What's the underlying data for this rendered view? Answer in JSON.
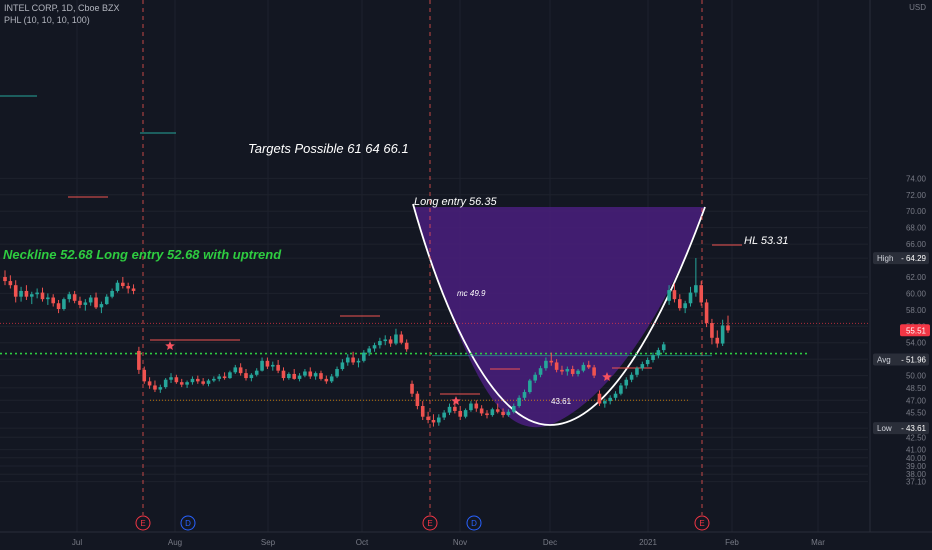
{
  "header": {
    "symbol_line": "INTEL CORP, 1D, Cboe BZX",
    "indicator_line": "PHL (10, 10, 10, 100)"
  },
  "chart_data": {
    "type": "candlestick",
    "currency": "USD",
    "y_ticks": [
      37.1,
      38.0,
      39.0,
      40.0,
      41.0,
      42.5,
      43.61,
      45.5,
      47.0,
      48.5,
      50.0,
      52.0,
      54.0,
      56.0,
      58.0,
      60.0,
      62.0,
      64.29,
      66.0,
      68.0,
      70.0,
      72.0,
      74.0
    ],
    "y_tick_labels": [
      "37.10",
      "38.00",
      "39.00",
      "40.00",
      "41.00",
      "42.50",
      "43.61",
      "45.50",
      "47.00",
      "48.50",
      "50.00",
      "52.00",
      "54.00",
      "56.00",
      "58.00",
      "60.00",
      "62.00",
      "64.29",
      "66.00",
      "68.00",
      "70.00",
      "72.00",
      "74.00"
    ],
    "x_labels": [
      "Jul",
      "Aug",
      "Sep",
      "Oct",
      "Nov",
      "Dec",
      "2021",
      "Feb",
      "Mar"
    ],
    "price_tags": [
      {
        "label": "High",
        "value": "64.29",
        "color": "#2a2e39"
      },
      {
        "label": "",
        "value": "55.51",
        "color": "#f23645"
      },
      {
        "label": "Avg",
        "value": "51.96",
        "color": "#2a2e39"
      },
      {
        "label": "Low",
        "value": "43.61",
        "color": "#2a2e39"
      }
    ],
    "events": [
      {
        "label": "E",
        "color": "#f23645"
      },
      {
        "label": "D",
        "color": "#2962ff"
      },
      {
        "label": "E",
        "color": "#f23645"
      },
      {
        "label": "D",
        "color": "#2962ff"
      },
      {
        "label": "E",
        "color": "#f23645"
      }
    ],
    "annotations": {
      "targets": "Targets Possible 61    64    66.1",
      "neckline": "Neckline 52.68   Long entry 52.68 with uptrend",
      "long_entry": "Long entry 56.35",
      "hl": "HL 53.31",
      "mc": "mc  49.9",
      "low_label": "43.61"
    },
    "colors": {
      "up": "#26a69a",
      "down": "#ef5350",
      "background": "#131722",
      "neckline": "#2ecc40",
      "cup_fill": "#4a1e7e"
    },
    "candles": [
      [
        62.0,
        62.8,
        61.0,
        61.5
      ],
      [
        61.5,
        62.2,
        60.6,
        61.0
      ],
      [
        61.0,
        61.6,
        58.9,
        59.6
      ],
      [
        59.6,
        60.8,
        59.0,
        60.3
      ],
      [
        60.3,
        61.0,
        59.2,
        59.6
      ],
      [
        59.6,
        60.2,
        58.7,
        59.9
      ],
      [
        59.9,
        60.6,
        59.4,
        60.1
      ],
      [
        60.1,
        60.7,
        59.0,
        59.3
      ],
      [
        59.3,
        60.0,
        58.6,
        59.5
      ],
      [
        59.5,
        59.9,
        58.4,
        58.8
      ],
      [
        58.8,
        59.2,
        57.6,
        58.1
      ],
      [
        58.1,
        59.5,
        57.9,
        59.3
      ],
      [
        59.3,
        60.2,
        58.9,
        59.9
      ],
      [
        59.9,
        60.3,
        58.8,
        59.1
      ],
      [
        59.1,
        59.6,
        58.2,
        58.6
      ],
      [
        58.6,
        59.3,
        57.9,
        58.9
      ],
      [
        58.9,
        59.8,
        58.5,
        59.5
      ],
      [
        59.5,
        60.1,
        58.1,
        58.3
      ],
      [
        58.3,
        59.0,
        57.6,
        58.7
      ],
      [
        58.7,
        59.9,
        58.6,
        59.6
      ],
      [
        59.6,
        60.6,
        59.4,
        60.3
      ],
      [
        60.3,
        61.6,
        60.1,
        61.3
      ],
      [
        61.3,
        62.0,
        60.6,
        60.9
      ],
      [
        60.9,
        61.3,
        60.0,
        60.6
      ],
      [
        60.6,
        61.1,
        59.9,
        60.3
      ],
      [
        53.0,
        53.5,
        50.2,
        50.7
      ],
      [
        50.7,
        51.1,
        49.0,
        49.3
      ],
      [
        49.3,
        49.8,
        48.4,
        48.8
      ],
      [
        48.8,
        49.4,
        48.0,
        48.3
      ],
      [
        48.3,
        48.9,
        47.9,
        48.6
      ],
      [
        48.6,
        49.7,
        48.4,
        49.5
      ],
      [
        49.5,
        50.3,
        49.1,
        49.8
      ],
      [
        49.8,
        50.1,
        49.0,
        49.2
      ],
      [
        49.2,
        49.6,
        48.6,
        48.9
      ],
      [
        48.9,
        49.4,
        48.5,
        49.2
      ],
      [
        49.2,
        49.9,
        48.9,
        49.6
      ],
      [
        49.6,
        50.0,
        49.0,
        49.3
      ],
      [
        49.3,
        49.7,
        48.8,
        49.0
      ],
      [
        49.0,
        49.6,
        48.7,
        49.4
      ],
      [
        49.4,
        49.9,
        49.2,
        49.6
      ],
      [
        49.6,
        50.2,
        49.3,
        49.9
      ],
      [
        49.9,
        50.4,
        49.5,
        49.7
      ],
      [
        49.7,
        50.6,
        49.6,
        50.4
      ],
      [
        50.4,
        51.3,
        50.2,
        51.0
      ],
      [
        51.0,
        51.5,
        50.0,
        50.3
      ],
      [
        50.3,
        50.8,
        49.4,
        49.7
      ],
      [
        49.7,
        50.3,
        49.3,
        50.1
      ],
      [
        50.1,
        50.9,
        49.9,
        50.6
      ],
      [
        50.6,
        52.2,
        50.5,
        51.8
      ],
      [
        51.8,
        52.2,
        50.8,
        51.1
      ],
      [
        51.1,
        51.7,
        50.6,
        51.3
      ],
      [
        51.3,
        51.9,
        50.3,
        50.6
      ],
      [
        50.6,
        51.0,
        49.4,
        49.7
      ],
      [
        49.7,
        50.4,
        49.5,
        50.2
      ],
      [
        50.2,
        50.8,
        49.5,
        49.6
      ],
      [
        49.6,
        50.3,
        49.3,
        50.0
      ],
      [
        50.0,
        50.8,
        49.8,
        50.5
      ],
      [
        50.5,
        51.0,
        49.6,
        49.9
      ],
      [
        49.9,
        50.5,
        49.5,
        50.3
      ],
      [
        50.3,
        50.6,
        49.4,
        49.6
      ],
      [
        49.6,
        50.0,
        49.0,
        49.3
      ],
      [
        49.3,
        50.2,
        49.1,
        49.9
      ],
      [
        49.9,
        51.1,
        49.7,
        50.8
      ],
      [
        50.8,
        52.0,
        50.6,
        51.6
      ],
      [
        51.6,
        52.6,
        51.2,
        52.2
      ],
      [
        52.2,
        52.9,
        51.3,
        51.6
      ],
      [
        51.6,
        52.1,
        51.0,
        51.8
      ],
      [
        51.8,
        53.1,
        51.6,
        52.8
      ],
      [
        52.8,
        53.6,
        52.4,
        53.3
      ],
      [
        53.3,
        54.0,
        52.9,
        53.7
      ],
      [
        53.7,
        54.6,
        53.3,
        54.2
      ],
      [
        54.2,
        54.9,
        53.7,
        54.4
      ],
      [
        54.4,
        54.8,
        53.5,
        53.9
      ],
      [
        53.9,
        55.7,
        53.7,
        55.0
      ],
      [
        55.0,
        55.4,
        53.8,
        54.0
      ],
      [
        54.0,
        54.4,
        52.9,
        53.2
      ],
      [
        49.0,
        49.4,
        47.4,
        47.8
      ],
      [
        47.8,
        48.1,
        45.9,
        46.3
      ],
      [
        46.3,
        46.9,
        44.6,
        45.0
      ],
      [
        45.0,
        45.6,
        44.2,
        44.6
      ],
      [
        44.6,
        45.3,
        43.8,
        44.3
      ],
      [
        44.3,
        45.3,
        43.9,
        44.9
      ],
      [
        44.9,
        45.8,
        44.6,
        45.5
      ],
      [
        45.5,
        46.6,
        45.2,
        46.2
      ],
      [
        46.2,
        46.7,
        45.4,
        45.7
      ],
      [
        45.7,
        46.3,
        44.6,
        45.0
      ],
      [
        45.0,
        46.0,
        44.8,
        45.8
      ],
      [
        45.8,
        46.9,
        45.6,
        46.6
      ],
      [
        46.6,
        47.0,
        45.6,
        46.0
      ],
      [
        46.0,
        46.4,
        45.1,
        45.4
      ],
      [
        45.4,
        45.8,
        44.8,
        45.2
      ],
      [
        45.2,
        46.1,
        45.0,
        45.9
      ],
      [
        45.9,
        46.6,
        45.4,
        45.6
      ],
      [
        45.6,
        46.0,
        44.9,
        45.2
      ],
      [
        45.2,
        45.9,
        45.0,
        45.6
      ],
      [
        45.6,
        46.6,
        45.4,
        46.3
      ],
      [
        46.3,
        47.6,
        46.1,
        47.3
      ],
      [
        47.3,
        48.3,
        47.0,
        48.0
      ],
      [
        48.0,
        49.6,
        47.8,
        49.4
      ],
      [
        49.4,
        50.4,
        49.1,
        50.1
      ],
      [
        50.1,
        51.2,
        49.8,
        50.9
      ],
      [
        50.9,
        52.2,
        50.6,
        51.8
      ],
      [
        51.8,
        52.8,
        51.2,
        51.6
      ],
      [
        51.6,
        52.0,
        50.4,
        50.7
      ],
      [
        50.7,
        51.2,
        50.1,
        50.5
      ],
      [
        50.5,
        51.1,
        50.0,
        50.8
      ],
      [
        50.8,
        51.2,
        49.9,
        50.2
      ],
      [
        50.2,
        50.8,
        49.9,
        50.6
      ],
      [
        50.6,
        51.6,
        50.4,
        51.3
      ],
      [
        51.3,
        51.8,
        50.8,
        51.0
      ],
      [
        51.0,
        51.3,
        49.7,
        50.0
      ],
      [
        47.8,
        48.2,
        46.3,
        46.6
      ],
      [
        46.6,
        47.2,
        46.1,
        46.9
      ],
      [
        46.9,
        47.6,
        46.5,
        47.3
      ],
      [
        47.3,
        48.1,
        47.0,
        47.8
      ],
      [
        47.8,
        49.1,
        47.6,
        48.8
      ],
      [
        48.8,
        49.8,
        48.4,
        49.5
      ],
      [
        49.5,
        50.4,
        49.2,
        50.1
      ],
      [
        50.1,
        51.1,
        49.8,
        50.9
      ],
      [
        50.9,
        51.7,
        50.6,
        51.4
      ],
      [
        51.4,
        52.2,
        51.1,
        51.9
      ],
      [
        51.9,
        52.8,
        51.6,
        52.5
      ],
      [
        52.5,
        53.4,
        52.1,
        53.1
      ],
      [
        53.1,
        54.1,
        52.8,
        53.8
      ],
      [
        59.1,
        61.0,
        58.6,
        60.4
      ],
      [
        60.4,
        61.2,
        58.9,
        59.3
      ],
      [
        59.3,
        59.9,
        57.9,
        58.2
      ],
      [
        58.2,
        59.1,
        57.6,
        58.8
      ],
      [
        58.8,
        60.8,
        58.4,
        60.1
      ],
      [
        60.1,
        64.3,
        59.6,
        61.0
      ],
      [
        61.0,
        61.5,
        58.5,
        58.9
      ],
      [
        58.9,
        59.3,
        55.9,
        56.4
      ],
      [
        56.4,
        56.9,
        53.8,
        54.6
      ],
      [
        54.6,
        55.5,
        53.4,
        53.9
      ],
      [
        53.9,
        56.8,
        53.6,
        56.1
      ],
      [
        56.1,
        57.3,
        55.2,
        55.5
      ]
    ]
  }
}
